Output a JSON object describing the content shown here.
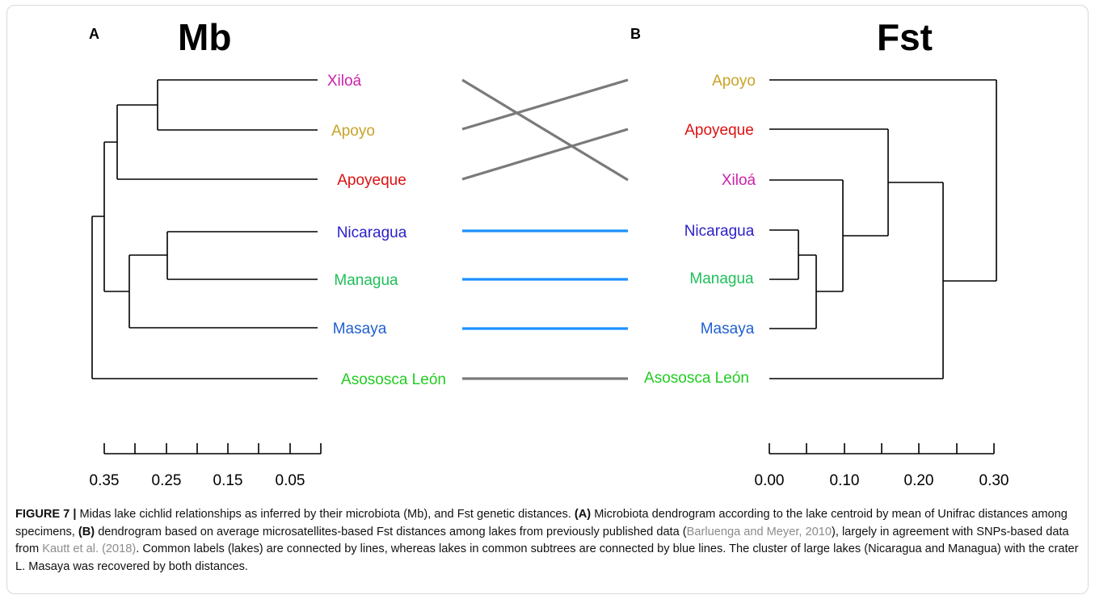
{
  "panels": {
    "a": {
      "letter": "A",
      "title": "Mb",
      "labels": [
        {
          "text": "Xiloá",
          "color": "#cc22aa"
        },
        {
          "text": "Apoyo",
          "color": "#c9a227"
        },
        {
          "text": "Apoyeque",
          "color": "#dd1111"
        },
        {
          "text": "Nicaragua",
          "color": "#2a1fc8"
        },
        {
          "text": "Managua",
          "color": "#1fbf5a"
        },
        {
          "text": "Masaya",
          "color": "#1f5fd0"
        },
        {
          "text": "Asososca León",
          "color": "#22cc22"
        }
      ],
      "scale_ticks": [
        "0.35",
        "0.25",
        "0.15",
        "0.05"
      ]
    },
    "b": {
      "letter": "B",
      "title": "Fst",
      "labels": [
        {
          "text": "Apoyo",
          "color": "#c9a227"
        },
        {
          "text": "Apoyeque",
          "color": "#dd1111"
        },
        {
          "text": "Xiloá",
          "color": "#cc22aa"
        },
        {
          "text": "Nicaragua",
          "color": "#2a1fc8"
        },
        {
          "text": "Managua",
          "color": "#1fbf5a"
        },
        {
          "text": "Masaya",
          "color": "#1f5fd0"
        },
        {
          "text": "Asososca León",
          "color": "#22cc22"
        }
      ],
      "scale_ticks": [
        "0.00",
        "0.10",
        "0.20",
        "0.30"
      ]
    }
  },
  "connector_colors": {
    "gray": "#7a7a7a",
    "blue": "#1e90ff"
  },
  "caption": {
    "label": "FIGURE 7 |",
    "part1": " Midas lake cichlid relationships as inferred by their microbiota (Mb), and Fst genetic distances. ",
    "a": "(A)",
    "part2": " Microbiota dendrogram according to the lake centroid by mean of Unifrac distances among specimens, ",
    "b": "(B)",
    "part3": " dendrogram based on average microsatellites-based Fst distances among lakes from previously published data (",
    "cite1": "Barluenga and Meyer, 2010",
    "part4": "), largely in agreement with SNPs-based data from ",
    "cite2": "Kautt et al. (2018)",
    "part5": ". Common labels (lakes) are connected by lines, whereas lakes in common subtrees are connected by blue lines. The cluster of large lakes (Nicaragua and Managua) with the crater L. Masaya was recovered by both distances."
  }
}
